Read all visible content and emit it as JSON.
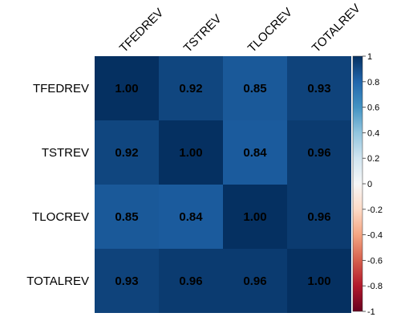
{
  "chart_data": {
    "type": "heatmap",
    "title": "",
    "rows": [
      "TFEDREV",
      "TSTREV",
      "TLOCREV",
      "TOTALREV"
    ],
    "columns": [
      "TFEDREV",
      "TSTREV",
      "TLOCREV",
      "TOTALREV"
    ],
    "values": [
      [
        1.0,
        0.92,
        0.85,
        0.93
      ],
      [
        0.92,
        1.0,
        0.84,
        0.96
      ],
      [
        0.85,
        0.84,
        1.0,
        0.96
      ],
      [
        0.93,
        0.96,
        0.96,
        1.0
      ]
    ],
    "value_labels": [
      [
        "1.00",
        "0.92",
        "0.85",
        "0.93"
      ],
      [
        "0.92",
        "1.00",
        "0.84",
        "0.96"
      ],
      [
        "0.85",
        "0.84",
        "1.00",
        "0.96"
      ],
      [
        "0.93",
        "0.96",
        "0.96",
        "1.00"
      ]
    ],
    "colorbar": {
      "range": [
        -1,
        1
      ],
      "ticks": [
        1,
        0.8,
        0.6,
        0.4,
        0.2,
        0,
        -0.2,
        -0.4,
        -0.6,
        -0.8,
        -1
      ],
      "tick_labels": [
        "1",
        "0.8",
        "0.6",
        "0.4",
        "0.2",
        "0",
        "-0.2",
        "-0.4",
        "-0.6",
        "-0.8",
        "-1"
      ],
      "colors": {
        "negative_end": "#67001f",
        "neg_mid2": "#b2182b",
        "neg_mid1": "#d6604d",
        "neg_light": "#f4a582",
        "neg_pale": "#fddbc7",
        "zero": "#f7f7f7",
        "pos_pale": "#d1e5f0",
        "pos_light": "#92c5de",
        "pos_mid1": "#4393c3",
        "pos_mid2": "#2166ac",
        "positive_end": "#053061"
      }
    }
  }
}
